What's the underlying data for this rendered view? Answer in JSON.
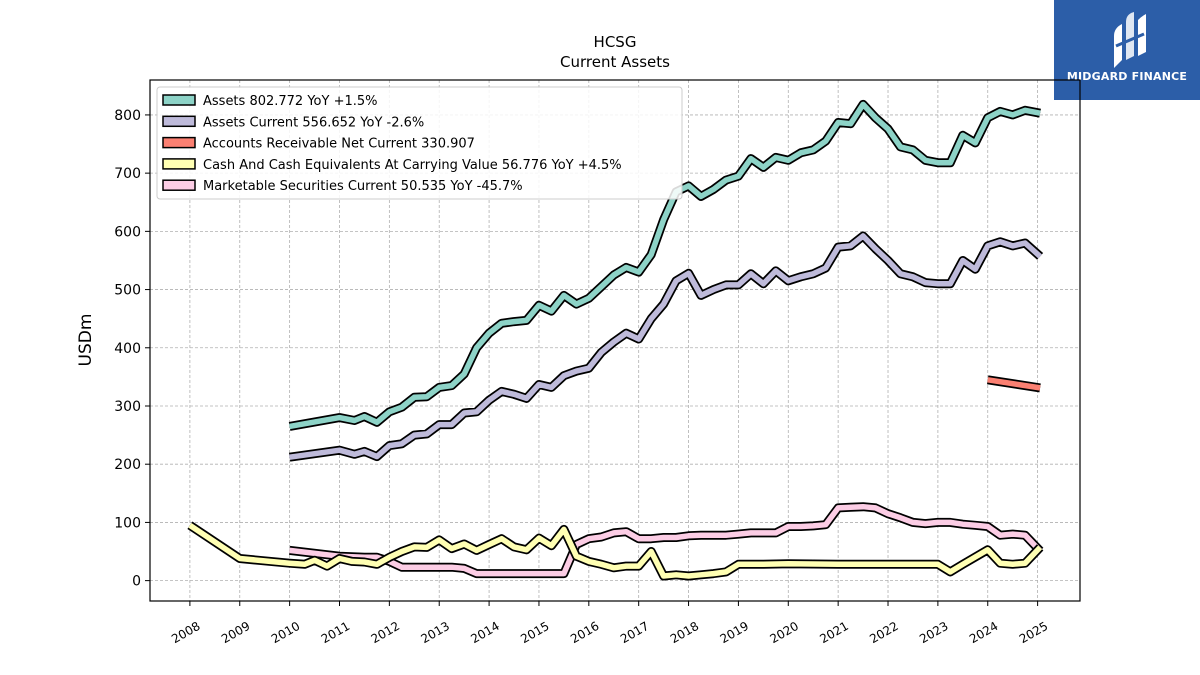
{
  "brand": {
    "name": "MIDGARD FINANCE",
    "bg_color": "#2c5ea8"
  },
  "chart_data": {
    "type": "line",
    "title": "HCSG",
    "subtitle": "Current  Assets",
    "ylabel": "USDm",
    "xlabel": "",
    "ylim": [
      -35,
      860
    ],
    "xlim": [
      2007.2,
      2025.85
    ],
    "yticks": [
      0,
      100,
      200,
      300,
      400,
      500,
      600,
      700,
      800
    ],
    "xticks": [
      "2008",
      "2009",
      "2010",
      "2011",
      "2012",
      "2013",
      "2014",
      "2015",
      "2016",
      "2017",
      "2018",
      "2019",
      "2020",
      "2021",
      "2022",
      "2023",
      "2024",
      "2025"
    ],
    "grid": true,
    "legend_position": "top-left",
    "series": [
      {
        "name": "Assets  802.772 YoY +1.5%",
        "color": "#8dd3c7",
        "points": [
          [
            2010.0,
            265
          ],
          [
            2011.0,
            280
          ],
          [
            2011.3,
            275
          ],
          [
            2011.5,
            282
          ],
          [
            2011.75,
            272
          ],
          [
            2012.0,
            290
          ],
          [
            2012.25,
            298
          ],
          [
            2012.5,
            315
          ],
          [
            2012.75,
            316
          ],
          [
            2013.0,
            332
          ],
          [
            2013.25,
            335
          ],
          [
            2013.5,
            355
          ],
          [
            2013.75,
            400
          ],
          [
            2014.0,
            425
          ],
          [
            2014.25,
            442
          ],
          [
            2014.5,
            445
          ],
          [
            2014.75,
            447
          ],
          [
            2015.0,
            473
          ],
          [
            2015.25,
            463
          ],
          [
            2015.5,
            490
          ],
          [
            2015.75,
            475
          ],
          [
            2016.0,
            485
          ],
          [
            2016.25,
            505
          ],
          [
            2016.5,
            525
          ],
          [
            2016.75,
            538
          ],
          [
            2017.0,
            530
          ],
          [
            2017.25,
            560
          ],
          [
            2017.5,
            620
          ],
          [
            2017.75,
            668
          ],
          [
            2018.0,
            678
          ],
          [
            2018.25,
            660
          ],
          [
            2018.5,
            672
          ],
          [
            2018.75,
            688
          ],
          [
            2019.0,
            695
          ],
          [
            2019.25,
            725
          ],
          [
            2019.5,
            710
          ],
          [
            2019.75,
            727
          ],
          [
            2020.0,
            722
          ],
          [
            2020.25,
            735
          ],
          [
            2020.5,
            740
          ],
          [
            2020.75,
            755
          ],
          [
            2021.0,
            787
          ],
          [
            2021.25,
            785
          ],
          [
            2021.5,
            818
          ],
          [
            2021.75,
            795
          ],
          [
            2022.0,
            776
          ],
          [
            2022.25,
            745
          ],
          [
            2022.5,
            740
          ],
          [
            2022.75,
            722
          ],
          [
            2023.0,
            718
          ],
          [
            2023.25,
            718
          ],
          [
            2023.5,
            765
          ],
          [
            2023.75,
            752
          ],
          [
            2024.0,
            795
          ],
          [
            2024.25,
            806
          ],
          [
            2024.5,
            800
          ],
          [
            2024.75,
            808
          ],
          [
            2025.05,
            803
          ]
        ]
      },
      {
        "name": "Assets Current  556.652 YoY -2.6%",
        "color": "#bebada",
        "points": [
          [
            2010.0,
            212
          ],
          [
            2011.0,
            224
          ],
          [
            2011.3,
            217
          ],
          [
            2011.5,
            222
          ],
          [
            2011.75,
            213
          ],
          [
            2012.0,
            232
          ],
          [
            2012.25,
            235
          ],
          [
            2012.5,
            250
          ],
          [
            2012.75,
            252
          ],
          [
            2013.0,
            268
          ],
          [
            2013.25,
            268
          ],
          [
            2013.5,
            288
          ],
          [
            2013.75,
            290
          ],
          [
            2014.0,
            310
          ],
          [
            2014.25,
            325
          ],
          [
            2014.5,
            320
          ],
          [
            2014.75,
            313
          ],
          [
            2015.0,
            337
          ],
          [
            2015.25,
            332
          ],
          [
            2015.5,
            352
          ],
          [
            2015.75,
            360
          ],
          [
            2016.0,
            365
          ],
          [
            2016.25,
            392
          ],
          [
            2016.5,
            410
          ],
          [
            2016.75,
            425
          ],
          [
            2017.0,
            415
          ],
          [
            2017.25,
            450
          ],
          [
            2017.5,
            475
          ],
          [
            2017.75,
            515
          ],
          [
            2018.0,
            528
          ],
          [
            2018.25,
            490
          ],
          [
            2018.5,
            500
          ],
          [
            2018.75,
            508
          ],
          [
            2019.0,
            508
          ],
          [
            2019.25,
            527
          ],
          [
            2019.5,
            510
          ],
          [
            2019.75,
            532
          ],
          [
            2020.0,
            515
          ],
          [
            2020.25,
            522
          ],
          [
            2020.5,
            527
          ],
          [
            2020.75,
            537
          ],
          [
            2021.0,
            573
          ],
          [
            2021.25,
            575
          ],
          [
            2021.5,
            592
          ],
          [
            2021.75,
            570
          ],
          [
            2022.0,
            550
          ],
          [
            2022.25,
            527
          ],
          [
            2022.5,
            522
          ],
          [
            2022.75,
            512
          ],
          [
            2023.0,
            510
          ],
          [
            2023.25,
            510
          ],
          [
            2023.5,
            550
          ],
          [
            2023.75,
            535
          ],
          [
            2024.0,
            575
          ],
          [
            2024.25,
            582
          ],
          [
            2024.5,
            575
          ],
          [
            2024.75,
            580
          ],
          [
            2025.05,
            557
          ]
        ]
      },
      {
        "name": "Accounts Receivable Net Current  330.907",
        "color": "#fb8072",
        "points": [
          [
            2024.0,
            345
          ],
          [
            2025.05,
            331
          ]
        ]
      },
      {
        "name": "Cash And Cash Equivalents At Carrying Value  56.776 YoY +4.5%",
        "color": "#ffffb3",
        "points": [
          [
            2008.0,
            95
          ],
          [
            2009.0,
            38
          ],
          [
            2010.0,
            30
          ],
          [
            2010.3,
            28
          ],
          [
            2010.5,
            35
          ],
          [
            2010.75,
            25
          ],
          [
            2011.0,
            38
          ],
          [
            2011.25,
            33
          ],
          [
            2011.5,
            32
          ],
          [
            2011.75,
            28
          ],
          [
            2012.0,
            40
          ],
          [
            2012.25,
            50
          ],
          [
            2012.5,
            58
          ],
          [
            2012.75,
            57
          ],
          [
            2013.0,
            70
          ],
          [
            2013.25,
            55
          ],
          [
            2013.5,
            63
          ],
          [
            2013.75,
            52
          ],
          [
            2014.0,
            62
          ],
          [
            2014.25,
            72
          ],
          [
            2014.5,
            58
          ],
          [
            2014.75,
            53
          ],
          [
            2015.0,
            73
          ],
          [
            2015.25,
            60
          ],
          [
            2015.5,
            88
          ],
          [
            2015.75,
            42
          ],
          [
            2016.0,
            33
          ],
          [
            2016.25,
            28
          ],
          [
            2016.5,
            22
          ],
          [
            2016.75,
            25
          ],
          [
            2017.0,
            25
          ],
          [
            2017.25,
            50
          ],
          [
            2017.5,
            8
          ],
          [
            2017.75,
            10
          ],
          [
            2018.0,
            8
          ],
          [
            2018.25,
            10
          ],
          [
            2018.5,
            12
          ],
          [
            2018.75,
            15
          ],
          [
            2019.0,
            28
          ],
          [
            2019.5,
            28
          ],
          [
            2020.0,
            29
          ],
          [
            2021.0,
            28
          ],
          [
            2022.0,
            28
          ],
          [
            2022.5,
            28
          ],
          [
            2023.0,
            28
          ],
          [
            2023.25,
            15
          ],
          [
            2023.5,
            28
          ],
          [
            2024.0,
            53
          ],
          [
            2024.25,
            30
          ],
          [
            2024.5,
            28
          ],
          [
            2024.75,
            30
          ],
          [
            2025.05,
            57
          ]
        ]
      },
      {
        "name": "Marketable Securities Current  50.535 YoY -45.7%",
        "color": "#fccde5",
        "points": [
          [
            2010.0,
            52
          ],
          [
            2011.0,
            42
          ],
          [
            2011.5,
            40
          ],
          [
            2011.75,
            40
          ],
          [
            2012.0,
            33
          ],
          [
            2012.25,
            23
          ],
          [
            2012.5,
            23
          ],
          [
            2012.75,
            23
          ],
          [
            2013.0,
            23
          ],
          [
            2013.25,
            23
          ],
          [
            2013.5,
            21
          ],
          [
            2013.75,
            12
          ],
          [
            2014.0,
            12
          ],
          [
            2014.25,
            12
          ],
          [
            2014.5,
            12
          ],
          [
            2014.75,
            12
          ],
          [
            2015.0,
            12
          ],
          [
            2015.25,
            12
          ],
          [
            2015.5,
            12
          ],
          [
            2015.75,
            62
          ],
          [
            2016.0,
            72
          ],
          [
            2016.25,
            75
          ],
          [
            2016.5,
            82
          ],
          [
            2016.75,
            84
          ],
          [
            2017.0,
            72
          ],
          [
            2017.25,
            72
          ],
          [
            2017.5,
            74
          ],
          [
            2017.75,
            74
          ],
          [
            2018.0,
            77
          ],
          [
            2018.25,
            78
          ],
          [
            2018.5,
            78
          ],
          [
            2018.75,
            78
          ],
          [
            2019.0,
            80
          ],
          [
            2019.25,
            82
          ],
          [
            2019.5,
            82
          ],
          [
            2019.75,
            82
          ],
          [
            2020.0,
            93
          ],
          [
            2020.25,
            93
          ],
          [
            2020.5,
            94
          ],
          [
            2020.75,
            96
          ],
          [
            2021.0,
            125
          ],
          [
            2021.25,
            126
          ],
          [
            2021.5,
            127
          ],
          [
            2021.75,
            125
          ],
          [
            2022.0,
            115
          ],
          [
            2022.25,
            108
          ],
          [
            2022.5,
            100
          ],
          [
            2022.75,
            98
          ],
          [
            2023.0,
            100
          ],
          [
            2023.25,
            100
          ],
          [
            2023.5,
            97
          ],
          [
            2023.75,
            95
          ],
          [
            2024.0,
            93
          ],
          [
            2024.25,
            78
          ],
          [
            2024.5,
            80
          ],
          [
            2024.75,
            78
          ],
          [
            2025.05,
            51
          ]
        ]
      }
    ]
  }
}
